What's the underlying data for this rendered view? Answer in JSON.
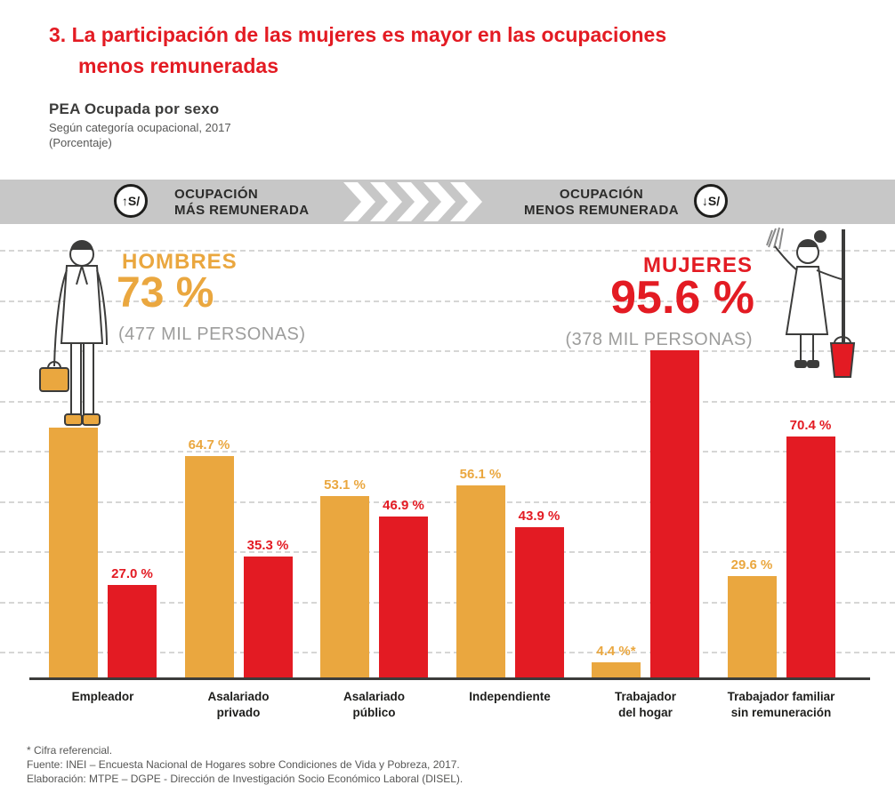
{
  "title": {
    "line1": "3. La participación de las mujeres es mayor en las ocupaciones",
    "line2": "menos remuneradas"
  },
  "subtitle": {
    "heading": "PEA Ocupada por sexo",
    "line2": "Según categoría ocupacional, 2017",
    "line3": "(Porcentaje)"
  },
  "banner": {
    "left_icon": "↑S/",
    "left_label_line1": "OCUPACIÓN",
    "left_label_line2": "MÁS REMUNERADA",
    "right_label_line1": "OCUPACIÓN",
    "right_label_line2": "MENOS REMUNERADA",
    "right_icon": "↓S/"
  },
  "highlights": {
    "men_label": "HOMBRES",
    "men_value": "73 %",
    "men_note": "(477 MIL PERSONAS)",
    "women_label": "MUJERES",
    "women_value": "95.6 %",
    "women_note": "(378 MIL PERSONAS)"
  },
  "colors": {
    "red": "#E31B23",
    "orange": "#EAA73F",
    "banner_gray": "#C7C7C7",
    "note_gray": "#9D9D9C"
  },
  "chart_data": {
    "type": "bar",
    "title": "PEA Ocupada por sexo, según categoría ocupacional, 2017 (Porcentaje)",
    "categories": [
      "Empleador",
      "Asalariado privado",
      "Asalariado público",
      "Independiente",
      "Trabajador del hogar",
      "Trabajador familiar sin remuneración"
    ],
    "categories_display": [
      "Empleador",
      "Asalariado\nprivado",
      "Asalariado\npúblico",
      "Independiente",
      "Trabajador\ndel hogar",
      "Trabajador familiar\nsin remuneración"
    ],
    "series": [
      {
        "name": "Hombres",
        "color": "#EAA73F",
        "values": [
          73.0,
          64.7,
          53.1,
          56.1,
          4.4,
          29.6
        ],
        "labels": [
          "",
          "64.7 %",
          "53.1 %",
          "56.1 %",
          "4.4 %*",
          "29.6 %"
        ]
      },
      {
        "name": "Mujeres",
        "color": "#E31B23",
        "values": [
          27.0,
          35.3,
          46.9,
          43.9,
          95.6,
          70.4
        ],
        "labels": [
          "27.0 %",
          "35.3 %",
          "46.9 %",
          "43.9 %",
          "",
          "70.4 %"
        ]
      }
    ],
    "unit": "%",
    "ylim": [
      0,
      100
    ],
    "grid": "dashed horizontal gridlines",
    "legend": "none (Hombres = naranja, Mujeres = rojo)"
  },
  "footnotes": {
    "line1": "* Cifra referencial.",
    "line2": "Fuente: INEI – Encuesta Nacional de Hogares sobre Condiciones de Vida y Pobreza, 2017.",
    "line3": "Elaboración: MTPE – DGPE - Dirección de Investigación Socio Económico Laboral (DISEL)."
  }
}
